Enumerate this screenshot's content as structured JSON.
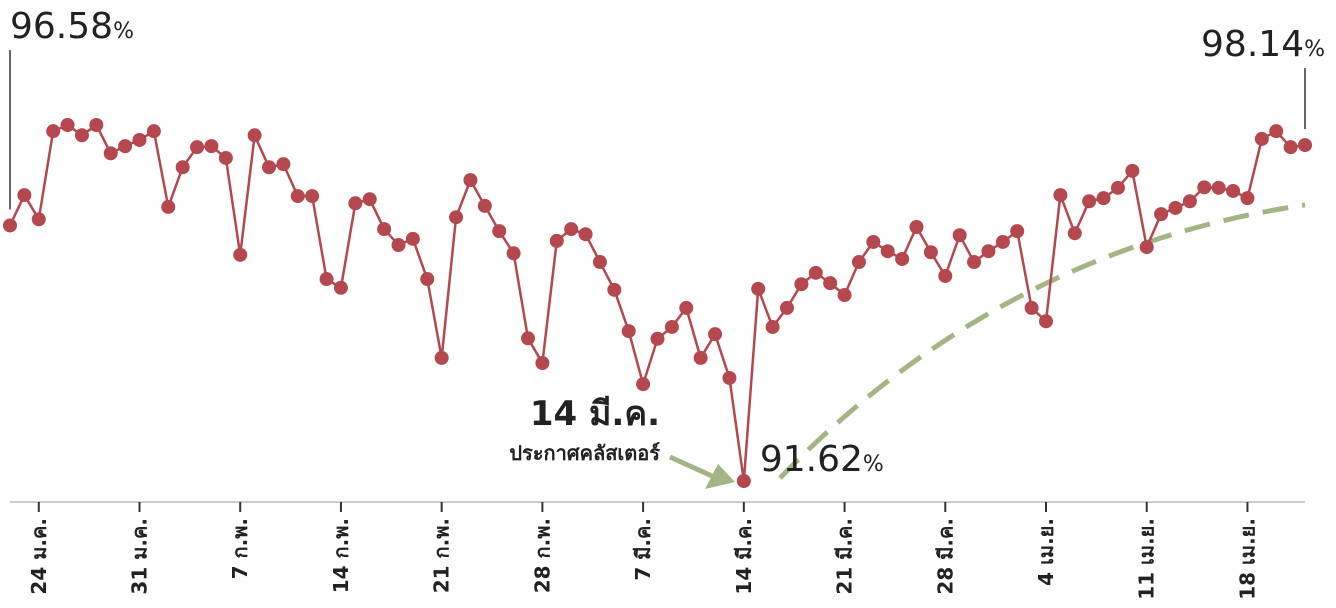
{
  "chart_data": {
    "type": "line",
    "categories": [
      null,
      null,
      "24 ม.ค.",
      null,
      null,
      null,
      null,
      null,
      null,
      "31 ม.ค.",
      null,
      null,
      null,
      null,
      null,
      null,
      "7 ก.พ.",
      null,
      null,
      null,
      null,
      null,
      null,
      "14 ก.พ.",
      null,
      null,
      null,
      null,
      null,
      null,
      "21 ก.พ.",
      null,
      null,
      null,
      null,
      null,
      null,
      "28 ก.พ.",
      null,
      null,
      null,
      null,
      null,
      null,
      "7 มี.ค.",
      null,
      null,
      null,
      null,
      null,
      null,
      "14 มี.ค.",
      null,
      null,
      null,
      null,
      null,
      null,
      "21 มี.ค.",
      null,
      null,
      null,
      null,
      null,
      null,
      "28 มี.ค.",
      null,
      null,
      null,
      null,
      null,
      null,
      "4 เม.ย.",
      null,
      null,
      null,
      null,
      null,
      null,
      "11 เม.ย.",
      null,
      null,
      null,
      null,
      null,
      null,
      "18 เม.ย.",
      null,
      null,
      null,
      null
    ],
    "series": [
      {
        "color": "#b5474f",
        "values": [
          96.58,
          97.17,
          96.7,
          98.41,
          98.53,
          98.33,
          98.53,
          97.98,
          98.12,
          98.24,
          98.41,
          96.94,
          97.71,
          98.1,
          98.12,
          97.89,
          96.01,
          98.33,
          97.71,
          97.77,
          97.15,
          97.15,
          95.54,
          95.37,
          97.01,
          97.09,
          96.51,
          96.2,
          96.32,
          95.54,
          94.01,
          96.74,
          97.46,
          96.96,
          96.47,
          96.04,
          94.39,
          93.91,
          96.28,
          96.51,
          96.41,
          95.87,
          95.33,
          94.53,
          93.5,
          94.38,
          94.61,
          94.98,
          94.01,
          94.47,
          93.62,
          91.62,
          95.35,
          94.61,
          94.98,
          95.44,
          95.66,
          95.46,
          95.23,
          95.87,
          96.26,
          96.08,
          95.93,
          96.55,
          96.06,
          95.6,
          96.39,
          95.87,
          96.08,
          96.26,
          96.47,
          94.98,
          94.72,
          97.17,
          96.43,
          97.05,
          97.11,
          97.31,
          97.64,
          96.16,
          96.8,
          96.92,
          97.05,
          97.32,
          97.31,
          97.25,
          97.11,
          98.26,
          98.41,
          98.1,
          98.14
        ],
        "value_labels": [
          "96.58%",
          null,
          null,
          null,
          null,
          null,
          null,
          null,
          null,
          null,
          null,
          null,
          null,
          null,
          null,
          null,
          null,
          null,
          null,
          null,
          null,
          null,
          null,
          null,
          null,
          null,
          null,
          null,
          null,
          null,
          null,
          null,
          null,
          null,
          null,
          null,
          null,
          null,
          null,
          null,
          null,
          null,
          null,
          null,
          null,
          null,
          null,
          null,
          null,
          null,
          null,
          "91.62%",
          null,
          null,
          null,
          null,
          null,
          null,
          null,
          null,
          null,
          null,
          null,
          null,
          null,
          null,
          null,
          null,
          null,
          null,
          null,
          null,
          null,
          null,
          null,
          null,
          null,
          null,
          null,
          null,
          null,
          null,
          null,
          null,
          null,
          null,
          null,
          null,
          null,
          null,
          "98.14%"
        ]
      }
    ],
    "annotation": {
      "title": "14 มี.ค.",
      "text": "ประกาศคลัสเตอร์"
    }
  }
}
